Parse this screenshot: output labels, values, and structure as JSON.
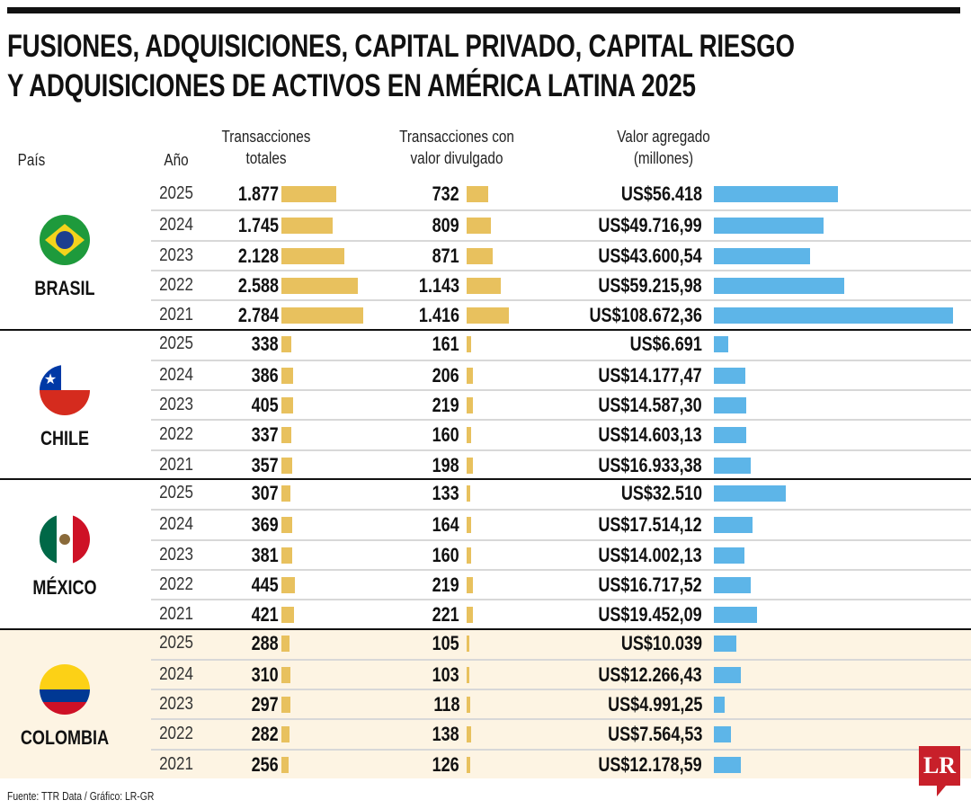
{
  "title": [
    "FUSIONES, ADQUISICIONES, CAPITAL PRIVADO, CAPITAL RIESGO",
    "Y ADQUISICIONES DE ACTIVOS EN AMÉRICA LATINA 2025"
  ],
  "headers": {
    "country": "País",
    "year": "Año",
    "total": [
      "Transacciones",
      "totales"
    ],
    "disclosed": [
      "Transacciones con",
      "valor divulgado"
    ],
    "value": [
      "Valor agregado",
      "(millones)"
    ]
  },
  "colors": {
    "total_bar": "#e8c15e",
    "disclosed_bar": "#e8c15e",
    "value_bar": "#5db5e8",
    "highlight": "#fdf4e3"
  },
  "chart_data": {
    "type": "table",
    "groups": [
      {
        "country": "BRASIL",
        "flag": "brazil-flag",
        "rows": [
          {
            "year": "2025",
            "total": 1877,
            "total_label": "1.877",
            "disclosed": 732,
            "disclosed_label": "732",
            "value": 56418,
            "value_label": "US$56.418"
          },
          {
            "year": "2024",
            "total": 1745,
            "total_label": "1.745",
            "disclosed": 809,
            "disclosed_label": "809",
            "value": 49716.99,
            "value_label": "US$49.716,99"
          },
          {
            "year": "2023",
            "total": 2128,
            "total_label": "2.128",
            "disclosed": 871,
            "disclosed_label": "871",
            "value": 43600.54,
            "value_label": "US$43.600,54"
          },
          {
            "year": "2022",
            "total": 2588,
            "total_label": "2.588",
            "disclosed": 1143,
            "disclosed_label": "1.143",
            "value": 59215.98,
            "value_label": "US$59.215,98"
          },
          {
            "year": "2021",
            "total": 2784,
            "total_label": "2.784",
            "disclosed": 1416,
            "disclosed_label": "1.416",
            "value": 108672.36,
            "value_label": "US$108.672,36"
          }
        ]
      },
      {
        "country": "CHILE",
        "flag": "chile-flag",
        "rows": [
          {
            "year": "2025",
            "total": 338,
            "total_label": "338",
            "disclosed": 161,
            "disclosed_label": "161",
            "value": 6691,
            "value_label": "US$6.691"
          },
          {
            "year": "2024",
            "total": 386,
            "total_label": "386",
            "disclosed": 206,
            "disclosed_label": "206",
            "value": 14177.47,
            "value_label": "US$14.177,47"
          },
          {
            "year": "2023",
            "total": 405,
            "total_label": "405",
            "disclosed": 219,
            "disclosed_label": "219",
            "value": 14587.3,
            "value_label": "US$14.587,30"
          },
          {
            "year": "2022",
            "total": 337,
            "total_label": "337",
            "disclosed": 160,
            "disclosed_label": "160",
            "value": 14603.13,
            "value_label": "US$14.603,13"
          },
          {
            "year": "2021",
            "total": 357,
            "total_label": "357",
            "disclosed": 198,
            "disclosed_label": "198",
            "value": 16933.38,
            "value_label": "US$16.933,38"
          }
        ]
      },
      {
        "country": "MÉXICO",
        "flag": "mexico-flag",
        "rows": [
          {
            "year": "2025",
            "total": 307,
            "total_label": "307",
            "disclosed": 133,
            "disclosed_label": "133",
            "value": 32510,
            "value_label": "US$32.510"
          },
          {
            "year": "2024",
            "total": 369,
            "total_label": "369",
            "disclosed": 164,
            "disclosed_label": "164",
            "value": 17514.12,
            "value_label": "US$17.514,12"
          },
          {
            "year": "2023",
            "total": 381,
            "total_label": "381",
            "disclosed": 160,
            "disclosed_label": "160",
            "value": 14002.13,
            "value_label": "US$14.002,13"
          },
          {
            "year": "2022",
            "total": 445,
            "total_label": "445",
            "disclosed": 219,
            "disclosed_label": "219",
            "value": 16717.52,
            "value_label": "US$16.717,52"
          },
          {
            "year": "2021",
            "total": 421,
            "total_label": "421",
            "disclosed": 221,
            "disclosed_label": "221",
            "value": 19452.09,
            "value_label": "US$19.452,09"
          }
        ]
      },
      {
        "country": "COLOMBIA",
        "flag": "colombia-flag",
        "highlight": true,
        "rows": [
          {
            "year": "2025",
            "total": 288,
            "total_label": "288",
            "disclosed": 105,
            "disclosed_label": "105",
            "value": 10039,
            "value_label": "US$10.039"
          },
          {
            "year": "2024",
            "total": 310,
            "total_label": "310",
            "disclosed": 103,
            "disclosed_label": "103",
            "value": 12266.43,
            "value_label": "US$12.266,43"
          },
          {
            "year": "2023",
            "total": 297,
            "total_label": "297",
            "disclosed": 118,
            "disclosed_label": "118",
            "value": 4991.25,
            "value_label": "US$4.991,25"
          },
          {
            "year": "2022",
            "total": 282,
            "total_label": "282",
            "disclosed": 138,
            "disclosed_label": "138",
            "value": 7564.53,
            "value_label": "US$7.564,53"
          },
          {
            "year": "2021",
            "total": 256,
            "total_label": "256",
            "disclosed": 126,
            "disclosed_label": "126",
            "value": 12178.59,
            "value_label": "US$12.178,59"
          }
        ]
      }
    ]
  },
  "source": "Fuente: TTR Data / Gráfico: LR-GR",
  "logo": "LR"
}
